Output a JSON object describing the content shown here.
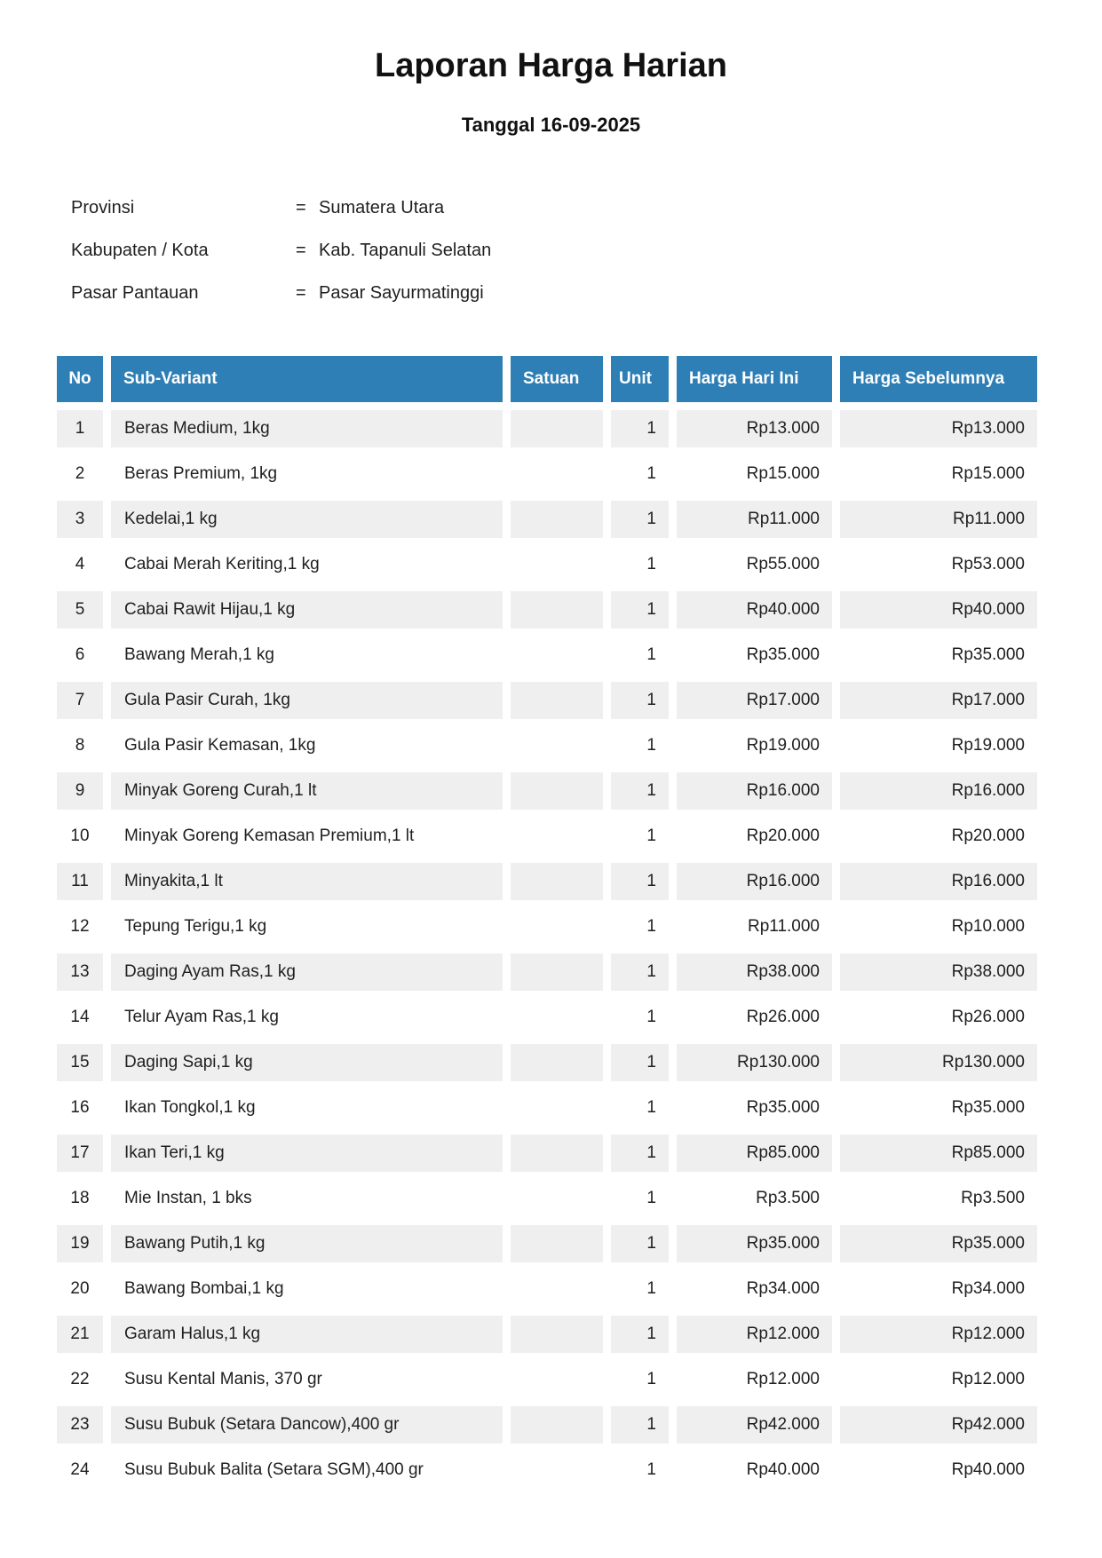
{
  "title": "Laporan Harga Harian",
  "subtitle": "Tanggal 16-09-2025",
  "meta": {
    "rows": [
      {
        "label": "Provinsi",
        "eq": "=",
        "value": "Sumatera Utara"
      },
      {
        "label": "Kabupaten / Kota",
        "eq": "=",
        "value": "Kab. Tapanuli Selatan"
      },
      {
        "label": "Pasar Pantauan",
        "eq": "=",
        "value": "Pasar Sayurmatinggi"
      }
    ]
  },
  "table": {
    "columns": [
      "No",
      "Sub-Variant",
      "Satuan",
      "Unit",
      "Harga Hari Ini",
      "Harga Sebelumnya"
    ],
    "rows": [
      {
        "no": "1",
        "sub_variant": "Beras Medium, 1kg",
        "satuan": "",
        "unit": "1",
        "harga_hari_ini": "Rp13.000",
        "harga_sebelumnya": "Rp13.000"
      },
      {
        "no": "2",
        "sub_variant": "Beras Premium, 1kg",
        "satuan": "",
        "unit": "1",
        "harga_hari_ini": "Rp15.000",
        "harga_sebelumnya": "Rp15.000"
      },
      {
        "no": "3",
        "sub_variant": "Kedelai,1 kg",
        "satuan": "",
        "unit": "1",
        "harga_hari_ini": "Rp11.000",
        "harga_sebelumnya": "Rp11.000"
      },
      {
        "no": "4",
        "sub_variant": "Cabai Merah Keriting,1 kg",
        "satuan": "",
        "unit": "1",
        "harga_hari_ini": "Rp55.000",
        "harga_sebelumnya": "Rp53.000"
      },
      {
        "no": "5",
        "sub_variant": "Cabai Rawit Hijau,1 kg",
        "satuan": "",
        "unit": "1",
        "harga_hari_ini": "Rp40.000",
        "harga_sebelumnya": "Rp40.000"
      },
      {
        "no": "6",
        "sub_variant": "Bawang Merah,1 kg",
        "satuan": "",
        "unit": "1",
        "harga_hari_ini": "Rp35.000",
        "harga_sebelumnya": "Rp35.000"
      },
      {
        "no": "7",
        "sub_variant": "Gula Pasir Curah, 1kg",
        "satuan": "",
        "unit": "1",
        "harga_hari_ini": "Rp17.000",
        "harga_sebelumnya": "Rp17.000"
      },
      {
        "no": "8",
        "sub_variant": "Gula Pasir Kemasan, 1kg",
        "satuan": "",
        "unit": "1",
        "harga_hari_ini": "Rp19.000",
        "harga_sebelumnya": "Rp19.000"
      },
      {
        "no": "9",
        "sub_variant": "Minyak Goreng Curah,1 lt",
        "satuan": "",
        "unit": "1",
        "harga_hari_ini": "Rp16.000",
        "harga_sebelumnya": "Rp16.000"
      },
      {
        "no": "10",
        "sub_variant": "Minyak Goreng Kemasan Premium,1 lt",
        "satuan": "",
        "unit": "1",
        "harga_hari_ini": "Rp20.000",
        "harga_sebelumnya": "Rp20.000"
      },
      {
        "no": "11",
        "sub_variant": "Minyakita,1 lt",
        "satuan": "",
        "unit": "1",
        "harga_hari_ini": "Rp16.000",
        "harga_sebelumnya": "Rp16.000"
      },
      {
        "no": "12",
        "sub_variant": "Tepung Terigu,1 kg",
        "satuan": "",
        "unit": "1",
        "harga_hari_ini": "Rp11.000",
        "harga_sebelumnya": "Rp10.000"
      },
      {
        "no": "13",
        "sub_variant": "Daging Ayam Ras,1 kg",
        "satuan": "",
        "unit": "1",
        "harga_hari_ini": "Rp38.000",
        "harga_sebelumnya": "Rp38.000"
      },
      {
        "no": "14",
        "sub_variant": "Telur Ayam Ras,1 kg",
        "satuan": "",
        "unit": "1",
        "harga_hari_ini": "Rp26.000",
        "harga_sebelumnya": "Rp26.000"
      },
      {
        "no": "15",
        "sub_variant": "Daging Sapi,1 kg",
        "satuan": "",
        "unit": "1",
        "harga_hari_ini": "Rp130.000",
        "harga_sebelumnya": "Rp130.000"
      },
      {
        "no": "16",
        "sub_variant": "Ikan Tongkol,1 kg",
        "satuan": "",
        "unit": "1",
        "harga_hari_ini": "Rp35.000",
        "harga_sebelumnya": "Rp35.000"
      },
      {
        "no": "17",
        "sub_variant": "Ikan Teri,1 kg",
        "satuan": "",
        "unit": "1",
        "harga_hari_ini": "Rp85.000",
        "harga_sebelumnya": "Rp85.000"
      },
      {
        "no": "18",
        "sub_variant": "Mie Instan, 1 bks",
        "satuan": "",
        "unit": "1",
        "harga_hari_ini": "Rp3.500",
        "harga_sebelumnya": "Rp3.500"
      },
      {
        "no": "19",
        "sub_variant": "Bawang Putih,1 kg",
        "satuan": "",
        "unit": "1",
        "harga_hari_ini": "Rp35.000",
        "harga_sebelumnya": "Rp35.000"
      },
      {
        "no": "20",
        "sub_variant": "Bawang Bombai,1 kg",
        "satuan": "",
        "unit": "1",
        "harga_hari_ini": "Rp34.000",
        "harga_sebelumnya": "Rp34.000"
      },
      {
        "no": "21",
        "sub_variant": "Garam Halus,1 kg",
        "satuan": "",
        "unit": "1",
        "harga_hari_ini": "Rp12.000",
        "harga_sebelumnya": "Rp12.000"
      },
      {
        "no": "22",
        "sub_variant": "Susu Kental Manis, 370 gr",
        "satuan": "",
        "unit": "1",
        "harga_hari_ini": "Rp12.000",
        "harga_sebelumnya": "Rp12.000"
      },
      {
        "no": "23",
        "sub_variant": "Susu Bubuk (Setara Dancow),400 gr",
        "satuan": "",
        "unit": "1",
        "harga_hari_ini": "Rp42.000",
        "harga_sebelumnya": "Rp42.000"
      },
      {
        "no": "24",
        "sub_variant": "Susu Bubuk Balita (Setara SGM),400 gr",
        "satuan": "",
        "unit": "1",
        "harga_hari_ini": "Rp40.000",
        "harga_sebelumnya": "Rp40.000"
      }
    ]
  },
  "colors": {
    "header_bg": "#2e7fb6",
    "header_text": "#ffffff",
    "row_alt_bg": "#efefef",
    "text": "#1f1f1f",
    "page_bg": "#ffffff"
  }
}
